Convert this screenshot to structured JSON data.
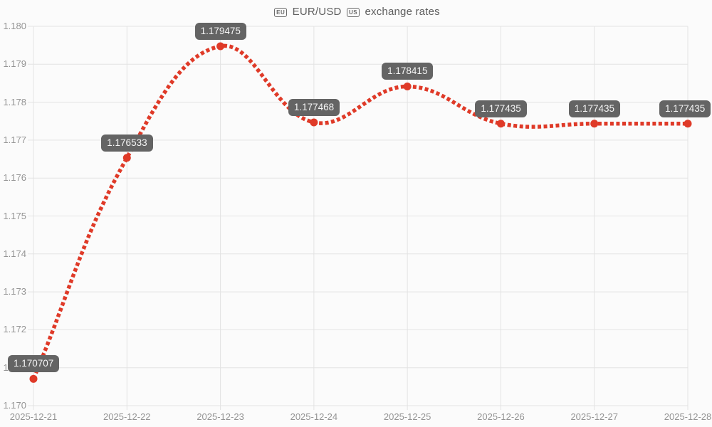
{
  "chart_data": {
    "type": "line",
    "title": "🇪🇺 EUR/USD 🇺🇸 exchange rates",
    "title_parts": {
      "flag_eu": "EU",
      "pair": "EUR/USD",
      "flag_us": "US",
      "suffix": "exchange rates"
    },
    "categories": [
      "2025-12-21",
      "2025-12-22",
      "2025-12-23",
      "2025-12-24",
      "2025-12-25",
      "2025-12-26",
      "2025-12-27",
      "2025-12-28"
    ],
    "series": [
      {
        "name": "EUR/USD",
        "values": [
          1.170707,
          1.176533,
          1.179475,
          1.177468,
          1.178415,
          1.177435,
          1.177435,
          1.177435
        ]
      }
    ],
    "point_labels": [
      "1.170707",
      "1.176533",
      "1.179475",
      "1.177468",
      "1.178415",
      "1.177435",
      "1.177435",
      "1.177435"
    ],
    "xlabel": "",
    "ylabel": "",
    "ylim": [
      1.17,
      1.18
    ],
    "y_ticks": [
      "1.170",
      "1.171",
      "1.172",
      "1.173",
      "1.174",
      "1.175",
      "1.176",
      "1.177",
      "1.178",
      "1.179",
      "1.180"
    ],
    "grid": true,
    "legend_position": "none",
    "line_style": "dotted",
    "curve": "smooth",
    "colors": {
      "line": "#df3a28",
      "marker": "#df3a28",
      "label_bg": "#646464",
      "label_text": "#f5f5f5",
      "grid": "#e3e3e3",
      "tick_text": "#949494",
      "title_text": "#5e5e5e",
      "background": "#fbfbfb"
    }
  }
}
